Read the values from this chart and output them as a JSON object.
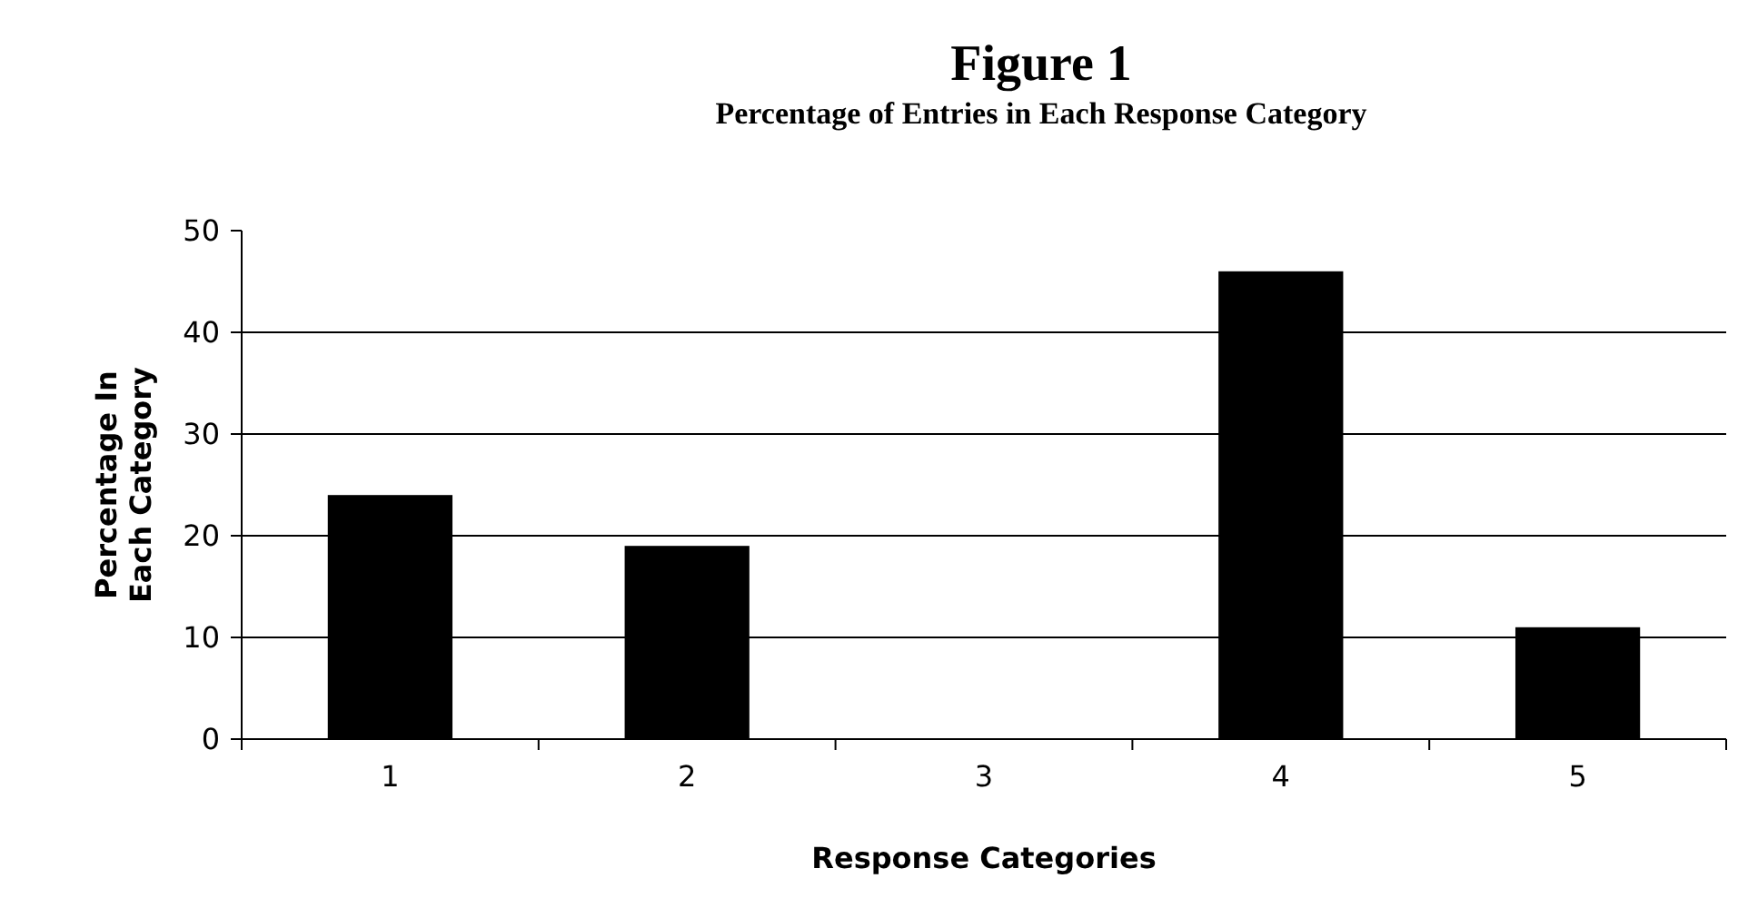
{
  "chart_data": {
    "type": "bar",
    "title": "Figure 1",
    "subtitle": "Percentage of Entries in Each Response Category",
    "xlabel": "Response Categories",
    "ylabel": "Percentage In Each Category",
    "categories": [
      "1",
      "2",
      "3",
      "4",
      "5"
    ],
    "values": [
      24,
      19,
      0,
      46,
      11
    ],
    "color": "#000000",
    "ylim": [
      0,
      50
    ],
    "yticks": [
      0,
      10,
      20,
      30,
      40,
      50
    ],
    "grid": "y"
  }
}
